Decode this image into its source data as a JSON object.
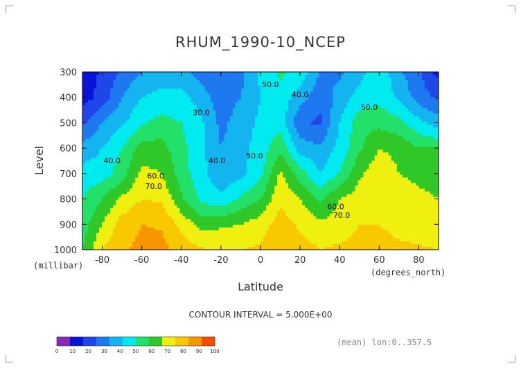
{
  "chart_data": {
    "type": "heatmap",
    "subtype": "filled-contour",
    "title": "RHUM_1990-10_NCEP",
    "xlabel": "Latitude",
    "xunits": "(degrees_north)",
    "ylabel": "Level",
    "yunits": "(millibar)",
    "xlim": [
      -90,
      90
    ],
    "ylim": [
      1000,
      300
    ],
    "xticks": [
      -80,
      -60,
      -40,
      -20,
      0,
      20,
      40,
      60,
      80
    ],
    "yticks": [
      300,
      400,
      500,
      600,
      700,
      800,
      900,
      1000
    ],
    "levels": [
      0,
      10,
      20,
      30,
      40,
      50,
      60,
      70,
      80,
      90,
      100
    ],
    "colors": [
      "#8a2bb5",
      "#0a14d8",
      "#1e46e8",
      "#1e78f0",
      "#14b4f0",
      "#00eaf0",
      "#22e06a",
      "#30c828",
      "#f0f010",
      "#f8c800",
      "#f89600",
      "#f84a00",
      "#e81010"
    ],
    "contour_interval_text": "CONTOUR INTERVAL = 5.000E+00",
    "note": "(mean) lon:0..357.5",
    "contour_labels": [
      "40.0",
      "30.0",
      "40.0",
      "50.0",
      "50.0",
      "40.0",
      "50.0",
      "60.0",
      "70.0",
      "60.0",
      "70.0"
    ],
    "colorbar_labels": [
      "0",
      "10",
      "20",
      "30",
      "40",
      "50",
      "60",
      "70",
      "80",
      "90",
      "100"
    ],
    "grid_lat": [
      -90,
      -80,
      -70,
      -60,
      -50,
      -40,
      -30,
      -20,
      -10,
      0,
      10,
      20,
      30,
      40,
      50,
      60,
      70,
      80,
      90
    ],
    "grid_lev": [
      300,
      400,
      500,
      600,
      700,
      800,
      900,
      1000
    ],
    "values": [
      [
        2,
        12,
        22,
        30,
        33,
        33,
        25,
        20,
        27,
        42,
        52,
        47,
        30,
        28,
        36,
        48,
        32,
        22,
        6
      ],
      [
        5,
        14,
        30,
        40,
        44,
        44,
        35,
        24,
        30,
        40,
        47,
        34,
        23,
        34,
        44,
        47,
        38,
        25,
        18
      ],
      [
        18,
        30,
        38,
        49,
        53,
        50,
        42,
        27,
        35,
        42,
        46,
        22,
        18,
        40,
        56,
        57,
        53,
        43,
        35
      ],
      [
        33,
        40,
        50,
        64,
        64,
        53,
        43,
        30,
        37,
        44,
        58,
        35,
        32,
        43,
        58,
        70,
        67,
        60,
        60
      ],
      [
        45,
        45,
        55,
        73,
        70,
        55,
        43,
        33,
        37,
        47,
        72,
        55,
        40,
        50,
        68,
        77,
        70,
        68,
        66
      ],
      [
        50,
        60,
        72,
        80,
        78,
        62,
        48,
        42,
        52,
        60,
        78,
        70,
        58,
        70,
        75,
        80,
        74,
        72,
        70
      ],
      [
        55,
        70,
        85,
        90,
        89,
        77,
        66,
        68,
        70,
        75,
        85,
        78,
        72,
        74,
        80,
        80,
        77,
        76,
        76
      ],
      [
        60,
        80,
        88,
        93,
        93,
        86,
        81,
        80,
        80,
        82,
        88,
        85,
        80,
        82,
        84,
        84,
        82,
        81,
        80
      ]
    ]
  }
}
